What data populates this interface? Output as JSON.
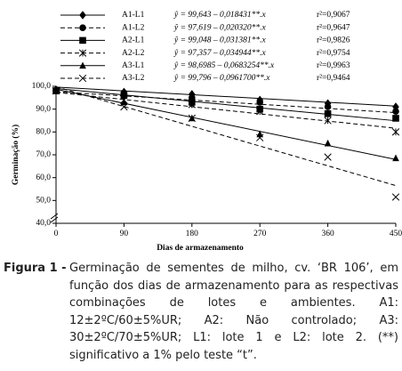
{
  "chart_data": {
    "type": "line",
    "x_label": "Dias de armazenamento",
    "y_label": "Germinação (%)",
    "x": [
      0,
      90,
      180,
      270,
      360,
      450
    ],
    "xlim": [
      0,
      450
    ],
    "xticks": [
      0,
      90,
      180,
      270,
      360,
      450
    ],
    "ylim": [
      40,
      100
    ],
    "yticks": [
      {
        "value": 40,
        "label": "40,0"
      },
      {
        "value": 50,
        "label": "50,0"
      },
      {
        "value": 60,
        "label": "60,0"
      },
      {
        "value": 70,
        "label": "70,0"
      },
      {
        "value": 80,
        "label": "80,0"
      },
      {
        "value": 90,
        "label": "90,0"
      },
      {
        "value": 100,
        "label": "100,0"
      }
    ],
    "series": [
      {
        "name": "A1-L1",
        "color": "#000000",
        "marker": "diamond",
        "dashed": false,
        "values": [
          98.5,
          97.5,
          96.5,
          94,
          92.5,
          91
        ],
        "equation": "ŷ = 99,643 – 0,018431**.x",
        "intercept": 99.643,
        "slope": -0.018431,
        "r2": "r²=0,9067"
      },
      {
        "name": "A1-L2",
        "color": "#000000",
        "marker": "circle",
        "dashed": true,
        "values": [
          98,
          97,
          95,
          93,
          91,
          89
        ],
        "equation": "ŷ = 97,619 – 0,020320**.x",
        "intercept": 97.619,
        "slope": -0.02032,
        "r2": "r²=0,9647"
      },
      {
        "name": "A2-L1",
        "color": "#000000",
        "marker": "square",
        "dashed": false,
        "values": [
          98,
          96,
          93,
          90,
          88,
          86
        ],
        "equation": "ŷ = 99,048 – 0,031381**.x",
        "intercept": 99.048,
        "slope": -0.031381,
        "r2": "r²=0,9826"
      },
      {
        "name": "A2-L2",
        "color": "#000000",
        "marker": "asterisk",
        "dashed": true,
        "values": [
          98,
          94,
          92,
          89,
          85,
          80
        ],
        "equation": "ŷ = 97,357 – 0,034944**.x",
        "intercept": 97.357,
        "slope": -0.034944,
        "r2": "r²=0,9754"
      },
      {
        "name": "A3-L1",
        "color": "#000000",
        "marker": "triangle",
        "dashed": false,
        "values": [
          98,
          93,
          86,
          79,
          75,
          68.5
        ],
        "equation": "ŷ = 98,6985 – 0,0683254**.x",
        "intercept": 98.6985,
        "slope": -0.0683254,
        "r2": "r²=0,9963"
      },
      {
        "name": "A3-L2",
        "color": "#000000",
        "marker": "cross",
        "dashed": true,
        "values": [
          98,
          91,
          86,
          77.5,
          69,
          51.5
        ],
        "equation": "ŷ = 99,796 – 0,0961700**.x",
        "intercept": 99.796,
        "slope": -0.09617,
        "r2": "r²=0,9464"
      }
    ]
  },
  "caption": {
    "label": "Figura 1 -",
    "text": "Germinação de sementes de milho, cv. ‘BR 106’, em função dos dias de armazenamento para as respectivas combinações de lotes e ambientes. A1: 12±2ºC/60±5%UR; A2: Não controlado; A3: 30±2ºC/70±5%UR; L1: lote 1 e L2: lote 2. (**) significativo a 1% pelo teste “t”."
  }
}
